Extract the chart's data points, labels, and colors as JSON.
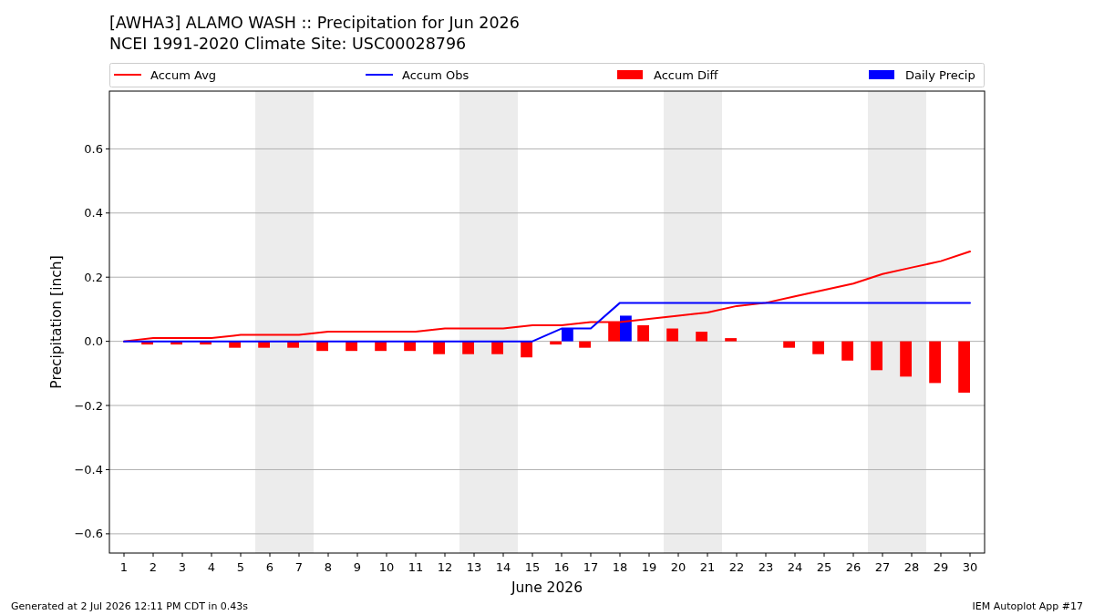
{
  "chart_data": {
    "type": "bar",
    "title": "[AWHA3] ALAMO WASH :: Precipitation for Jun 2026",
    "subtitle": "NCEI 1991-2020 Climate Site: USC00028796",
    "xlabel": "June 2026",
    "ylabel": "Precipitation [inch]",
    "x": [
      1,
      2,
      3,
      4,
      5,
      6,
      7,
      8,
      9,
      10,
      11,
      12,
      13,
      14,
      15,
      16,
      17,
      18,
      19,
      20,
      21,
      22,
      23,
      24,
      25,
      26,
      27,
      28,
      29,
      30
    ],
    "series": [
      {
        "name": "Accum Avg",
        "type": "line",
        "color": "#ff0000",
        "values": [
          0,
          0.01,
          0.01,
          0.01,
          0.02,
          0.02,
          0.02,
          0.03,
          0.03,
          0.03,
          0.03,
          0.04,
          0.04,
          0.04,
          0.05,
          0.05,
          0.06,
          0.06,
          0.07,
          0.08,
          0.09,
          0.11,
          0.12,
          0.14,
          0.16,
          0.18,
          0.21,
          0.23,
          0.25,
          0.28
        ]
      },
      {
        "name": "Accum Obs",
        "type": "line",
        "color": "#0000ff",
        "values": [
          0,
          0,
          0,
          0,
          0,
          0,
          0,
          0,
          0,
          0,
          0,
          0,
          0,
          0,
          0,
          0.04,
          0.04,
          0.12,
          0.12,
          0.12,
          0.12,
          0.12,
          0.12,
          0.12,
          0.12,
          0.12,
          0.12,
          0.12,
          0.12,
          0.12
        ]
      },
      {
        "name": "Accum Diff",
        "color": "#ff0000",
        "values": [
          0,
          -0.01,
          -0.01,
          -0.01,
          -0.02,
          -0.02,
          -0.02,
          -0.03,
          -0.03,
          -0.03,
          -0.03,
          -0.04,
          -0.04,
          -0.04,
          -0.05,
          -0.01,
          -0.02,
          0.06,
          0.05,
          0.04,
          0.03,
          0.01,
          0,
          -0.02,
          -0.04,
          -0.06,
          -0.09,
          -0.11,
          -0.13,
          -0.16
        ]
      },
      {
        "name": "Daily Precip",
        "color": "#0000ff",
        "values": [
          0,
          0,
          0,
          0,
          0,
          0,
          0,
          0,
          0,
          0,
          0,
          0,
          0,
          0,
          0,
          0.04,
          0,
          0.08,
          0,
          0,
          0,
          0,
          0,
          0,
          0,
          0,
          0,
          0,
          0,
          0
        ]
      }
    ],
    "xlim": [
      0.5,
      30.5
    ],
    "xticks": [
      1,
      2,
      3,
      4,
      5,
      6,
      7,
      8,
      9,
      10,
      11,
      12,
      13,
      14,
      15,
      16,
      17,
      18,
      19,
      20,
      21,
      22,
      23,
      24,
      25,
      26,
      27,
      28,
      29,
      30
    ],
    "ylim": [
      -0.66,
      0.78
    ],
    "yticks": [
      {
        "value": -0.6,
        "label": "−0.6"
      },
      {
        "value": -0.4,
        "label": "−0.4"
      },
      {
        "value": -0.2,
        "label": "−0.2"
      },
      {
        "value": 0,
        "label": "0.0"
      },
      0.2,
      0.4,
      0.6
    ],
    "grid": "y",
    "legend": "top",
    "bands": [
      {
        "axis": "x",
        "from": 5.5,
        "to": 7.5,
        "color": "#ececec"
      },
      {
        "axis": "x",
        "from": 12.5,
        "to": 14.5,
        "color": "#ececec"
      },
      {
        "axis": "x",
        "from": 19.5,
        "to": 21.5,
        "color": "#ececec"
      },
      {
        "axis": "x",
        "from": 26.5,
        "to": 28.5,
        "color": "#ececec"
      }
    ],
    "annotations": [
      "Generated at 2 Jul 2026 12:11 PM CDT in 0.43s",
      "IEM Autoplot App #17"
    ]
  }
}
